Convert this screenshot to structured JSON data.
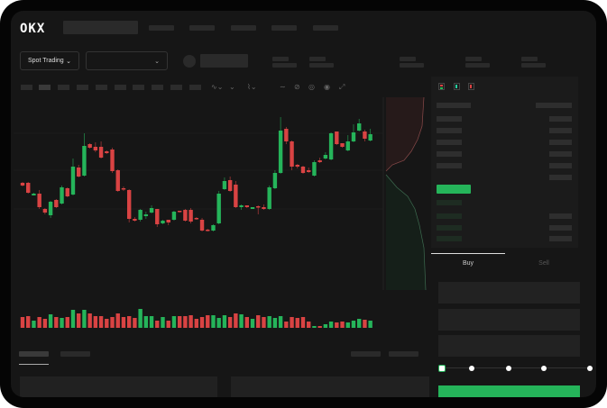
{
  "header": {
    "logo": "OKX",
    "nav_count": 5
  },
  "market_bar": {
    "mode_dropdown": "Spot Trading"
  },
  "order_form": {
    "tabs": [
      {
        "label": "Buy",
        "active": true
      },
      {
        "label": "Sell",
        "active": false
      }
    ],
    "slider_level_percent": 0
  },
  "colors": {
    "up": "#25b45a",
    "down": "#d94343",
    "background": "#161616",
    "accent": "#25b45a"
  },
  "icons": [
    "chevron-down-icon",
    "line-tool-icon",
    "pencil-icon",
    "camera-icon",
    "target-icon",
    "fullscreen-icon",
    "orderbook-both-icon",
    "orderbook-buy-icon",
    "orderbook-sell-icon"
  ],
  "chart_data": {
    "type": "candlestick",
    "candles_ohlc": [
      [
        97,
        94,
        98,
        93
      ],
      [
        97,
        86,
        98,
        85
      ],
      [
        83,
        85,
        86,
        83
      ],
      [
        85,
        70,
        89,
        68
      ],
      [
        68,
        64,
        69,
        62
      ],
      [
        61,
        76,
        77,
        58
      ],
      [
        78,
        70,
        79,
        69
      ],
      [
        74,
        92,
        94,
        73
      ],
      [
        91,
        82,
        92,
        81
      ],
      [
        84,
        115,
        124,
        83
      ],
      [
        114,
        104,
        117,
        103
      ],
      [
        105,
        138,
        152,
        104
      ],
      [
        140,
        136,
        141,
        135
      ],
      [
        137,
        133,
        142,
        131
      ],
      [
        137,
        125,
        143,
        124
      ],
      [
        132,
        130,
        133,
        129
      ],
      [
        134,
        110,
        136,
        108
      ],
      [
        111,
        88,
        112,
        87
      ],
      [
        91,
        90,
        93,
        88
      ],
      [
        89,
        57,
        90,
        53
      ],
      [
        57,
        55,
        59,
        54
      ],
      [
        56,
        67,
        68,
        54
      ],
      [
        60,
        62,
        65,
        57
      ],
      [
        64,
        69,
        72,
        63
      ],
      [
        68,
        51,
        68,
        48
      ],
      [
        52,
        55,
        56,
        51
      ],
      [
        56,
        53,
        56,
        50
      ],
      [
        56,
        65,
        66,
        55
      ],
      [
        66,
        65,
        66,
        64
      ],
      [
        67,
        55,
        68,
        54
      ],
      [
        67,
        54,
        69,
        52
      ],
      [
        58,
        57,
        59,
        56
      ],
      [
        56,
        44,
        58,
        43
      ],
      [
        45,
        44,
        46,
        43
      ],
      [
        44,
        50,
        51,
        43
      ],
      [
        52,
        85,
        88,
        51
      ],
      [
        90,
        99,
        103,
        89
      ],
      [
        100,
        88,
        104,
        87
      ],
      [
        95,
        70,
        99,
        69
      ],
      [
        70,
        72,
        73,
        67
      ],
      [
        72,
        70,
        72,
        69
      ],
      [
        68,
        70,
        70,
        68
      ],
      [
        71,
        70,
        72,
        62
      ],
      [
        70,
        68,
        73,
        67
      ],
      [
        68,
        92,
        94,
        67
      ],
      [
        91,
        108,
        111,
        90
      ],
      [
        108,
        155,
        170,
        107
      ],
      [
        157,
        143,
        159,
        140
      ],
      [
        143,
        115,
        144,
        111
      ],
      [
        117,
        115,
        118,
        113
      ],
      [
        115,
        108,
        116,
        107
      ],
      [
        111,
        109,
        114,
        108
      ],
      [
        105,
        120,
        122,
        104
      ],
      [
        122,
        120,
        125,
        119
      ],
      [
        124,
        128,
        131,
        123
      ],
      [
        123,
        152,
        153,
        122
      ],
      [
        154,
        140,
        154,
        139
      ],
      [
        141,
        137,
        141,
        136
      ],
      [
        133,
        143,
        150,
        132
      ],
      [
        143,
        153,
        162,
        142
      ],
      [
        155,
        163,
        168,
        154
      ],
      [
        154,
        146,
        156,
        143
      ],
      [
        144,
        151,
        157,
        143
      ]
    ],
    "volume": [
      12,
      13,
      8,
      12,
      10,
      15,
      12,
      11,
      12,
      20,
      16,
      20,
      16,
      13,
      13,
      10,
      12,
      16,
      12,
      13,
      11,
      21,
      13,
      13,
      8,
      12,
      8,
      13,
      13,
      13,
      14,
      10,
      12,
      14,
      14,
      11,
      14,
      12,
      16,
      15,
      12,
      10,
      14,
      12,
      13,
      11,
      13,
      7,
      12,
      11,
      12,
      7,
      2,
      2,
      4,
      7,
      6,
      7,
      6,
      8,
      10,
      9,
      8
    ]
  }
}
